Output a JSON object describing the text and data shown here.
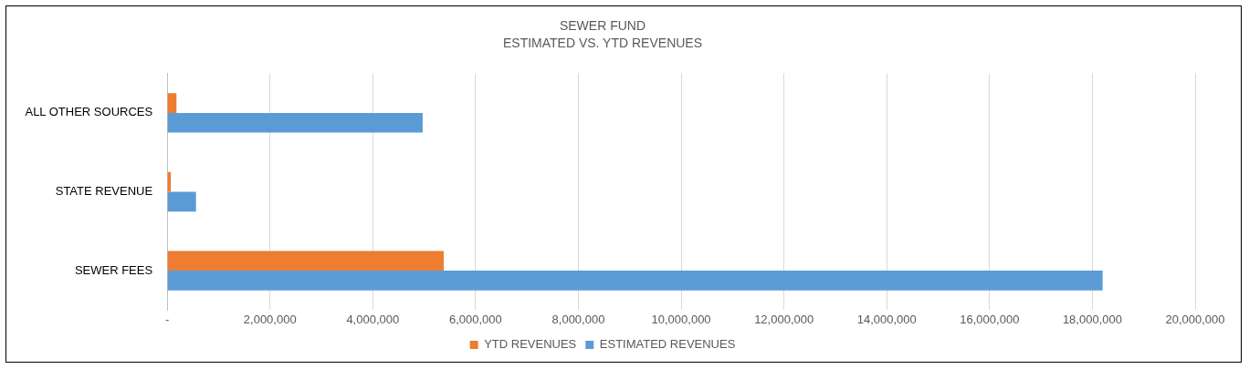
{
  "chart_data": {
    "type": "bar",
    "orientation": "horizontal",
    "title": "SEWER FUND",
    "subtitle": "ESTIMATED VS. YTD REVENUES",
    "categories": [
      "ALL OTHER SOURCES",
      "STATE REVENUE",
      "SEWER FEES"
    ],
    "series": [
      {
        "name": "YTD REVENUES",
        "color": "#ed7d31",
        "values": [
          180000,
          70000,
          5380000
        ]
      },
      {
        "name": "ESTIMATED REVENUES",
        "color": "#5b9bd5",
        "values": [
          4970000,
          560000,
          18200000
        ]
      }
    ],
    "xlim": [
      0,
      20000000
    ],
    "xticks": [
      {
        "value": 0,
        "label": "-"
      },
      {
        "value": 2000000,
        "label": "2,000,000"
      },
      {
        "value": 4000000,
        "label": "4,000,000"
      },
      {
        "value": 6000000,
        "label": "6,000,000"
      },
      {
        "value": 8000000,
        "label": "8,000,000"
      },
      {
        "value": 10000000,
        "label": "10,000,000"
      },
      {
        "value": 12000000,
        "label": "12,000,000"
      },
      {
        "value": 14000000,
        "label": "14,000,000"
      },
      {
        "value": 16000000,
        "label": "16,000,000"
      },
      {
        "value": 18000000,
        "label": "18,000,000"
      },
      {
        "value": 20000000,
        "label": "20,000,000"
      }
    ],
    "grid": "x",
    "legend": "bottom"
  }
}
